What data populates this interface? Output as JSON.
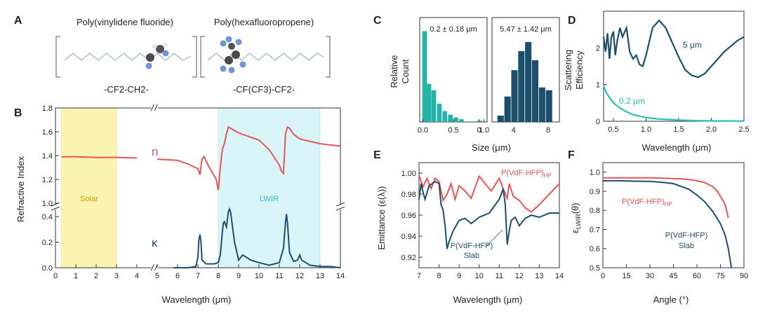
{
  "panel_labels": {
    "a": "A",
    "b": "B",
    "c": "C",
    "d": "D",
    "e": "E",
    "f": "F"
  },
  "panel_a": {
    "left_name": "Poly(vinylidene fluoride)",
    "right_name": "Poly(hexafluoropropene)",
    "left_formula": "-CF2-CH2-",
    "right_formula": "-CF(CF3)-CF2-"
  },
  "colors": {
    "red": "#e8545a",
    "navy": "#1b4f6b",
    "teal": "#2bbfb8",
    "cteal": "#25b3a8",
    "solar": "#fbf3b0",
    "lwir": "#d9f5f8"
  },
  "chart_data": [
    {
      "id": "B",
      "type": "line",
      "xlabel": "Wavelength (μm)",
      "ylabel": "Refractive Index",
      "x_ticks": [
        "0",
        "1",
        "2",
        "3",
        "4",
        "5",
        "6",
        "7",
        "8",
        "9",
        "10",
        "11",
        "12",
        "13",
        "14"
      ],
      "y_ticks_upper": [
        "1.0",
        "1.2",
        "1.4",
        "1.6",
        "1.8"
      ],
      "y_ticks_lower": [
        "0.0",
        "0.2",
        "0.4"
      ],
      "regions": [
        {
          "name": "Solar",
          "x": [
            0.3,
            3.0
          ]
        },
        {
          "name": "LWIR",
          "x": [
            8.0,
            13.0
          ]
        }
      ],
      "series": [
        {
          "name": "n",
          "x": [
            0.3,
            1,
            2,
            3,
            4,
            5,
            6,
            6.5,
            7,
            7.1,
            7.2,
            7.3,
            7.5,
            7.7,
            7.9,
            8.0,
            8.1,
            8.2,
            8.3,
            8.4,
            8.5,
            8.7,
            9.0,
            9.5,
            10,
            10.5,
            11,
            11.1,
            11.2,
            11.25,
            11.3,
            11.4,
            11.5,
            11.7,
            12,
            12.5,
            13,
            13.5,
            14
          ],
          "y": [
            1.39,
            1.39,
            1.385,
            1.385,
            1.38,
            1.37,
            1.36,
            1.33,
            1.29,
            1.24,
            1.37,
            1.39,
            1.32,
            1.26,
            1.2,
            1.11,
            1.3,
            1.45,
            1.5,
            1.58,
            1.64,
            1.62,
            1.59,
            1.56,
            1.53,
            1.45,
            1.32,
            1.27,
            1.25,
            1.4,
            1.58,
            1.64,
            1.63,
            1.58,
            1.54,
            1.52,
            1.5,
            1.49,
            1.48
          ]
        },
        {
          "name": "κ",
          "x": [
            5.8,
            6,
            6.5,
            6.9,
            7.0,
            7.05,
            7.1,
            7.15,
            7.2,
            7.4,
            7.6,
            7.8,
            8.0,
            8.1,
            8.2,
            8.25,
            8.3,
            8.4,
            8.5,
            8.55,
            8.6,
            8.8,
            9.0,
            9.2,
            9.4,
            9.6,
            9.8,
            10,
            10.5,
            11,
            11.2,
            11.3,
            11.35,
            11.4,
            11.5,
            11.7,
            11.9,
            12.0,
            12.1,
            12.3,
            12.5,
            13,
            13.5,
            14
          ],
          "y": [
            0.0,
            0.0,
            0.0,
            0.01,
            0.08,
            0.22,
            0.26,
            0.2,
            0.06,
            0.03,
            0.03,
            0.03,
            0.04,
            0.1,
            0.28,
            0.35,
            0.36,
            0.32,
            0.44,
            0.46,
            0.44,
            0.2,
            0.06,
            0.1,
            0.08,
            0.06,
            0.05,
            0.04,
            0.02,
            0.04,
            0.15,
            0.35,
            0.42,
            0.35,
            0.12,
            0.05,
            0.06,
            0.1,
            0.06,
            0.04,
            0.02,
            0.01,
            0.01,
            0.0
          ]
        }
      ]
    },
    {
      "id": "C1",
      "type": "bar",
      "annotation": "0.2 ± 0.18 μm",
      "x_ticks": [
        "0.0",
        "0.5",
        "1.0"
      ],
      "bin_centers": [
        0.03,
        0.1,
        0.18,
        0.27,
        0.36,
        0.45,
        0.54,
        0.63,
        0.93
      ],
      "values": [
        1.0,
        0.42,
        0.35,
        0.2,
        0.12,
        0.08,
        0.05,
        0.03,
        0.015
      ]
    },
    {
      "id": "C2",
      "type": "bar",
      "annotation": "5.47 ± 1.42 μm",
      "x_ticks": [
        "0",
        "4",
        "8"
      ],
      "bin_centers": [
        2.5,
        3.3,
        4.1,
        4.9,
        5.7,
        6.5,
        7.3,
        8.1
      ],
      "values": [
        0.07,
        0.28,
        0.57,
        0.78,
        0.88,
        0.68,
        0.38,
        0.35
      ],
      "ylabel": "Relative Count",
      "xlabel": "Size (μm)"
    },
    {
      "id": "D",
      "type": "line",
      "xlabel": "Wavelength (μm)",
      "ylabel": "Scattering Efficiency",
      "x_ticks": [
        "0.5",
        "1.0",
        "1.5",
        "2.0",
        "2.5"
      ],
      "y_ticks": [
        "0",
        "1",
        "2"
      ],
      "xlim": [
        0.35,
        2.5
      ],
      "ylim": [
        0,
        3.0
      ],
      "series": [
        {
          "name": "5 μm",
          "x": [
            0.35,
            0.38,
            0.41,
            0.44,
            0.47,
            0.5,
            0.53,
            0.56,
            0.6,
            0.64,
            0.7,
            0.75,
            0.8,
            0.85,
            0.9,
            0.95,
            1.0,
            1.1,
            1.2,
            1.3,
            1.4,
            1.5,
            1.6,
            1.7,
            1.8,
            1.9,
            2.0,
            2.1,
            2.2,
            2.3,
            2.4,
            2.5
          ],
          "y": [
            2.3,
            1.9,
            2.4,
            1.7,
            2.3,
            2.45,
            1.8,
            2.2,
            2.55,
            2.3,
            2.55,
            1.9,
            1.7,
            1.8,
            1.55,
            1.5,
            1.8,
            2.55,
            2.75,
            2.55,
            2.15,
            1.75,
            1.4,
            1.25,
            1.2,
            1.3,
            1.5,
            1.7,
            1.9,
            2.05,
            2.2,
            2.3
          ]
        },
        {
          "name": "0.2 μm",
          "x": [
            0.35,
            0.4,
            0.5,
            0.6,
            0.7,
            0.8,
            1.0,
            1.2,
            1.5,
            1.8,
            2.0,
            2.5
          ],
          "y": [
            0.96,
            0.75,
            0.5,
            0.36,
            0.26,
            0.18,
            0.1,
            0.06,
            0.03,
            0.015,
            0.01,
            0.005
          ]
        }
      ]
    },
    {
      "id": "E",
      "type": "line",
      "xlabel": "Wavelength (μm)",
      "ylabel": "Emittance (ε(λ))",
      "x_ticks": [
        "7",
        "8",
        "9",
        "10",
        "11",
        "12",
        "13",
        "14"
      ],
      "y_ticks": [
        "0.92",
        "0.94",
        "0.96",
        "0.98",
        "1.00"
      ],
      "xlim": [
        7,
        14
      ],
      "ylim": [
        0.91,
        1.01
      ],
      "series": [
        {
          "name": "P(VdF-HFP)HP",
          "x": [
            7,
            7.2,
            7.4,
            7.6,
            7.8,
            8.0,
            8.2,
            8.4,
            8.6,
            8.8,
            9.0,
            9.3,
            9.6,
            10.0,
            10.3,
            10.6,
            11.0,
            11.2,
            11.4,
            11.5,
            11.7,
            12.0,
            12.3,
            12.6,
            13.0,
            13.5,
            14
          ],
          "y": [
            0.998,
            0.987,
            0.995,
            0.985,
            0.995,
            0.992,
            0.974,
            0.98,
            0.99,
            0.975,
            0.988,
            0.983,
            0.976,
            0.997,
            0.99,
            0.983,
            0.995,
            0.985,
            0.976,
            0.99,
            0.978,
            0.974,
            0.967,
            0.963,
            0.97,
            0.98,
            0.99
          ]
        },
        {
          "name": "P(VdF-HFP) Slab",
          "x": [
            7,
            7.1,
            7.2,
            7.3,
            7.5,
            7.8,
            8.0,
            8.1,
            8.2,
            8.3,
            8.4,
            8.5,
            8.7,
            9.0,
            9.3,
            9.6,
            10.0,
            10.5,
            11.0,
            11.2,
            11.3,
            11.4,
            11.5,
            11.6,
            11.8,
            12.0,
            12.3,
            12.6,
            13.0,
            13.5,
            14
          ],
          "y": [
            0.975,
            0.99,
            0.982,
            0.975,
            0.988,
            0.992,
            0.99,
            0.97,
            0.965,
            0.95,
            0.928,
            0.935,
            0.945,
            0.955,
            0.957,
            0.952,
            0.958,
            0.962,
            0.975,
            0.985,
            0.97,
            0.932,
            0.945,
            0.955,
            0.958,
            0.95,
            0.957,
            0.96,
            0.958,
            0.962,
            0.962
          ]
        }
      ]
    },
    {
      "id": "F",
      "type": "line",
      "xlabel": "Angle (°)",
      "ylabel": "ε_LWIR(θ)",
      "x_ticks": [
        "0",
        "15",
        "30",
        "45",
        "60",
        "75",
        "90"
      ],
      "y_ticks": [
        "0.5",
        "0.6",
        "0.7",
        "0.8",
        "0.9",
        "1.0"
      ],
      "xlim": [
        0,
        90
      ],
      "ylim": [
        0.5,
        1.05
      ],
      "series": [
        {
          "name": "P(VdF-HFP)HP",
          "x": [
            0,
            10,
            20,
            30,
            40,
            50,
            55,
            60,
            65,
            70,
            73,
            76,
            78,
            80
          ],
          "y": [
            0.97,
            0.97,
            0.97,
            0.97,
            0.968,
            0.965,
            0.962,
            0.955,
            0.945,
            0.925,
            0.9,
            0.86,
            0.83,
            0.76
          ]
        },
        {
          "name": "P(VdF-HFP) Slab",
          "x": [
            0,
            10,
            20,
            30,
            40,
            45,
            50,
            55,
            60,
            65,
            70,
            72,
            75,
            78,
            80,
            82
          ],
          "y": [
            0.955,
            0.955,
            0.953,
            0.952,
            0.945,
            0.94,
            0.925,
            0.91,
            0.88,
            0.845,
            0.795,
            0.77,
            0.73,
            0.67,
            0.6,
            0.5
          ]
        }
      ]
    }
  ],
  "labels": {
    "b_n": "n",
    "b_k": "κ",
    "b_solar": "Solar",
    "b_lwir": "LWIR",
    "b_xlabel": "Wavelength (μm)",
    "b_ylabel": "Refractive Index",
    "c_ylabel_1": "Relative",
    "c_ylabel_2": "Count",
    "c_xlabel": "Size (μm)",
    "c1_ann": "0.2 ± 0.18 μm",
    "c2_ann": "5.47 ± 1.42 μm",
    "d_ylabel_1": "Scattering",
    "d_ylabel_2": "Efficiency",
    "d_xlabel": "Wavelength (μm)",
    "d_5um": "5 μm",
    "d_02um": "0.2 μm",
    "e_ylabel": "Emittance (ε(λ))",
    "e_xlabel": "Wavelength (μm)",
    "e_hp": "P(VdF-HFP)",
    "e_hp_sub": "HP",
    "e_slab_1": "P(VdF-HFP)",
    "e_slab_2": "Slab",
    "f_ylabel": "ε",
    "f_ylabel_sub": "LWIR",
    "f_ylabel_tail": "(θ)",
    "f_xlabel": "Angle (°)",
    "f_hp": "P(VdF-HFP)",
    "f_hp_sub": "HP",
    "f_slab_1": "P(VdF-HFP)",
    "f_slab_2": "Slab"
  }
}
